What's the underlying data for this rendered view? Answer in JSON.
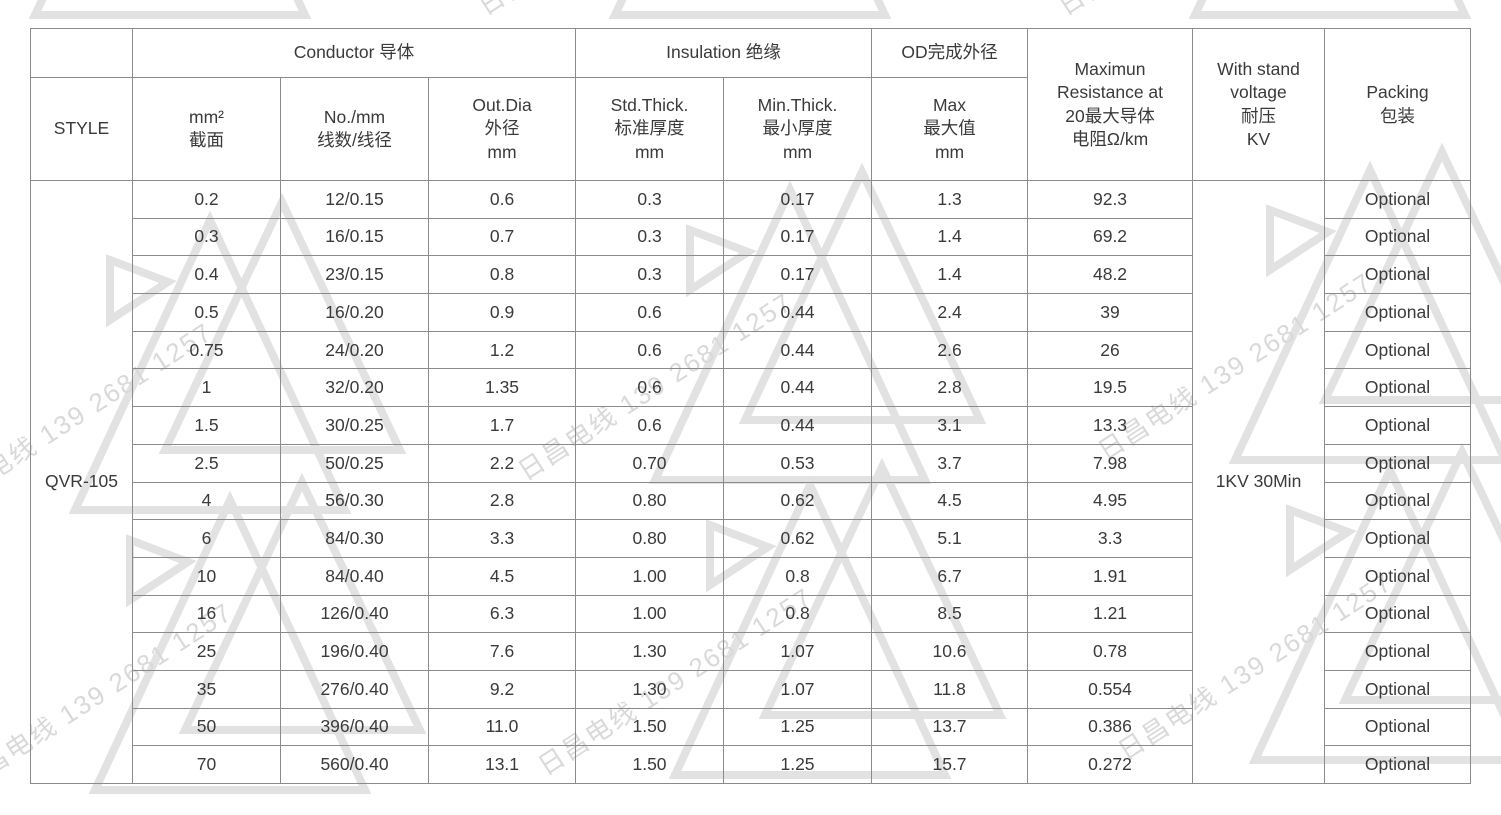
{
  "watermark": {
    "text": "日昌电线 139 2681 1257"
  },
  "colors": {
    "table_border": "#8b8b8b",
    "table_text": "#3a3a3a",
    "watermark_line": "#e2e2e2",
    "watermark_text": "#d9d9d9",
    "background": "#ffffff"
  },
  "table": {
    "groups": {
      "conductor": "Conductor 导体",
      "insulation": "Insulation 绝缘",
      "od": "OD完成外径"
    },
    "headers": {
      "style": "STYLE",
      "mm2": "mm²\n截面",
      "no_mm": "No./mm\n线数/线径",
      "out_dia": "Out.Dia\n外径\nmm",
      "std_thick": "Std.Thick.\n标准厚度\nmm",
      "min_thick": "Min.Thick.\n最小厚度\nmm",
      "max": "Max\n最大值\nmm",
      "resistance": "Maximun\nResistance at\n20最大导体\n电阻Ω/km",
      "withstand": "With stand\nvoltage\n耐压\nKV",
      "packing": "Packing\n包装"
    },
    "style_value": "QVR-105",
    "withstand_value": "1KV 30Min",
    "rows": [
      [
        "0.2",
        "12/0.15",
        "0.6",
        "0.3",
        "0.17",
        "1.3",
        "92.3",
        "Optional"
      ],
      [
        "0.3",
        "16/0.15",
        "0.7",
        "0.3",
        "0.17",
        "1.4",
        "69.2",
        "Optional"
      ],
      [
        "0.4",
        "23/0.15",
        "0.8",
        "0.3",
        "0.17",
        "1.4",
        "48.2",
        "Optional"
      ],
      [
        "0.5",
        "16/0.20",
        "0.9",
        "0.6",
        "0.44",
        "2.4",
        "39",
        "Optional"
      ],
      [
        "0.75",
        "24/0.20",
        "1.2",
        "0.6",
        "0.44",
        "2.6",
        "26",
        "Optional"
      ],
      [
        "1",
        "32/0.20",
        "1.35",
        "0.6",
        "0.44",
        "2.8",
        "19.5",
        "Optional"
      ],
      [
        "1.5",
        "30/0.25",
        "1.7",
        "0.6",
        "0.44",
        "3.1",
        "13.3",
        "Optional"
      ],
      [
        "2.5",
        "50/0.25",
        "2.2",
        "0.70",
        "0.53",
        "3.7",
        "7.98",
        "Optional"
      ],
      [
        "4",
        "56/0.30",
        "2.8",
        "0.80",
        "0.62",
        "4.5",
        "4.95",
        "Optional"
      ],
      [
        "6",
        "84/0.30",
        "3.3",
        "0.80",
        "0.62",
        "5.1",
        "3.3",
        "Optional"
      ],
      [
        "10",
        "84/0.40",
        "4.5",
        "1.00",
        "0.8",
        "6.7",
        "1.91",
        "Optional"
      ],
      [
        "16",
        "126/0.40",
        "6.3",
        "1.00",
        "0.8",
        "8.5",
        "1.21",
        "Optional"
      ],
      [
        "25",
        "196/0.40",
        "7.6",
        "1.30",
        "1.07",
        "10.6",
        "0.78",
        "Optional"
      ],
      [
        "35",
        "276/0.40",
        "9.2",
        "1.30",
        "1.07",
        "11.8",
        "0.554",
        "Optional"
      ],
      [
        "50",
        "396/0.40",
        "11.0",
        "1.50",
        "1.25",
        "13.7",
        "0.386",
        "Optional"
      ],
      [
        "70",
        "560/0.40",
        "13.1",
        "1.50",
        "1.25",
        "15.7",
        "0.272",
        "Optional"
      ]
    ]
  }
}
